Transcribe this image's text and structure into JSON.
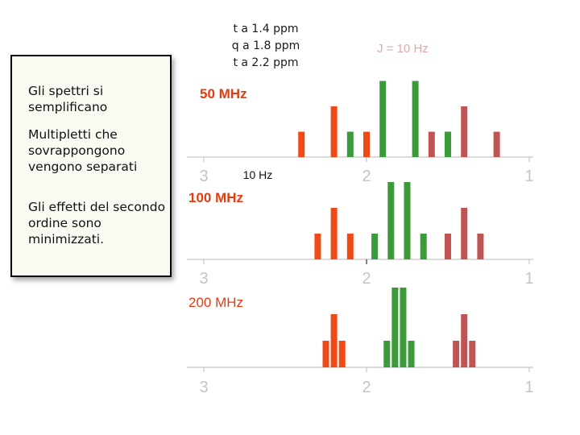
{
  "header": {
    "lines": [
      "t a 1.4 ppm",
      "q a 1.8 ppm",
      "t a 2.2 ppm"
    ],
    "coupling": "J = 10 Hz"
  },
  "notes": [
    "Gli spettri si semplificano",
    "Multipletti che sovrappongono vengono separati",
    "Gli effetti del secondo ordine sono minimizzati."
  ],
  "colors": {
    "multiplet_2_2": "#ef4a16",
    "multiplet_1_8": "#3b9a3a",
    "multiplet_1_4": "#c05454",
    "axis": "#c8c8c8",
    "frequency_label": "#e23c10"
  },
  "chart_data": [
    {
      "type": "bar",
      "title": "50 MHz",
      "x_ticks": [
        "3",
        "2",
        "1"
      ],
      "annotation": "10 Hz",
      "series": [
        {
          "color": "#ef4a16",
          "x": [
            2.4,
            2.2,
            2.0
          ],
          "values": [
            1,
            2,
            1
          ]
        },
        {
          "color": "#3b9a3a",
          "x": [
            2.1,
            1.9,
            1.7,
            1.5
          ],
          "values": [
            1,
            3,
            3,
            1
          ]
        },
        {
          "color": "#c05454",
          "x": [
            1.6,
            1.4,
            1.2
          ],
          "values": [
            1,
            2,
            1
          ]
        }
      ]
    },
    {
      "type": "bar",
      "title": "100 MHz",
      "x_ticks": [
        "3",
        "2",
        "1"
      ],
      "series": [
        {
          "color": "#ef4a16",
          "x": [
            2.3,
            2.2,
            2.1
          ],
          "values": [
            1,
            2,
            1
          ]
        },
        {
          "color": "#3b9a3a",
          "x": [
            1.95,
            1.85,
            1.75,
            1.65
          ],
          "values": [
            1,
            3,
            3,
            1
          ]
        },
        {
          "color": "#c05454",
          "x": [
            1.5,
            1.4,
            1.3
          ],
          "values": [
            1,
            2,
            1
          ]
        }
      ]
    },
    {
      "type": "bar",
      "title": "200 MHz",
      "x_ticks": [
        "3",
        "2",
        "1"
      ],
      "series": [
        {
          "color": "#ef4a16",
          "x": [
            2.25,
            2.2,
            2.15
          ],
          "values": [
            1,
            2,
            1
          ]
        },
        {
          "color": "#3b9a3a",
          "x": [
            1.875,
            1.825,
            1.775,
            1.725
          ],
          "values": [
            1,
            3,
            3,
            1
          ]
        },
        {
          "color": "#c05454",
          "x": [
            1.45,
            1.4,
            1.35
          ],
          "values": [
            1,
            2,
            1
          ]
        }
      ]
    }
  ]
}
